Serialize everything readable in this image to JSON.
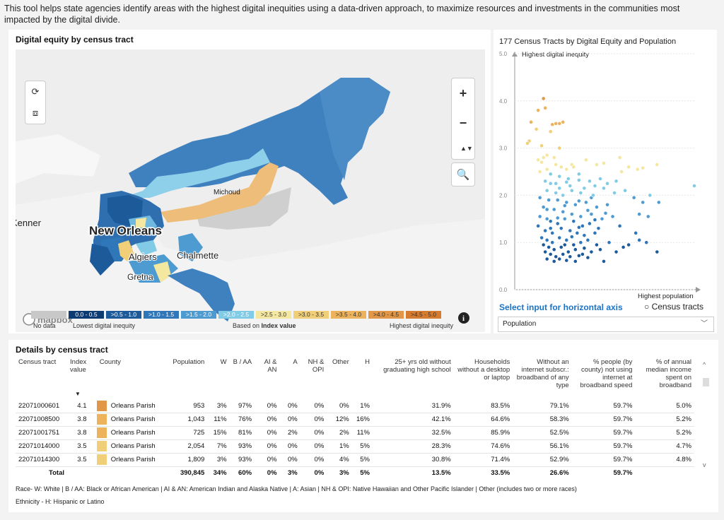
{
  "intro_text": "This tool helps state agencies identify areas with the highest digital inequities using a data-driven approach, to maximize resources and investments in the communities most impacted by the digital divide.",
  "map": {
    "title": "Digital equity by census tract",
    "places": {
      "city": "New Orleans",
      "p1": "Michoud",
      "p2": "Algiers",
      "p3": "Chalmette",
      "p4": "Gretna",
      "p5": "Kenner"
    },
    "attribution": "mapbox",
    "info_icon": "i",
    "controls": {
      "zoom_in": "+",
      "zoom_out": "−",
      "compass": "▲▼",
      "search": "🔍"
    },
    "legend": {
      "bins": [
        {
          "label": "0.0 - 0.5",
          "color": "#0d3c73"
        },
        {
          "label": ">0.5 - 1.0",
          "color": "#1c5a9a"
        },
        {
          "label": ">1.0 - 1.5",
          "color": "#2f77b8"
        },
        {
          "label": ">1.5 - 2.0",
          "color": "#4e9bd2"
        },
        {
          "label": ">2.0 - 2.5",
          "color": "#82cbe6"
        },
        {
          "label": ">2.5 - 3.0",
          "color": "#f4e7a0"
        },
        {
          "label": ">3.0 - 3.5",
          "color": "#f1cf78"
        },
        {
          "label": ">3.5 - 4.0",
          "color": "#ecb25c"
        },
        {
          "label": ">4.0 - 4.5",
          "color": "#e29748"
        },
        {
          "label": ">4.5 - 5.0",
          "color": "#d67c30"
        }
      ],
      "no_data": "No data",
      "low_label": "Lowest digital inequity",
      "based_on": "Based on ",
      "based_on_bold": "Index value",
      "high_label": "Highest  digital inequity"
    }
  },
  "scatter": {
    "title": "177 Census Tracts by Digital Equity and Population",
    "y_axis_label": "Highest digital inequity",
    "x_axis_label": "Highest population",
    "axis_select_label": "Select input for horizontal axis",
    "legend_label": "Census tracts",
    "dropdown_value": "Population",
    "chart_data": {
      "type": "scatter",
      "title": "177 Census Tracts by Digital Equity and Population",
      "ylabel": "Highest digital inequity",
      "xlabel": "Highest population",
      "y_ticks": [
        "5.0",
        "4.0",
        "3.0",
        "2.0",
        "1.0",
        "0.0"
      ],
      "ylim": [
        0,
        5
      ],
      "xlim": [
        0,
        1
      ],
      "points": [
        [
          0.15,
          4.05
        ],
        [
          0.16,
          3.85
        ],
        [
          0.12,
          3.8
        ],
        [
          0.08,
          3.55
        ],
        [
          0.2,
          3.5
        ],
        [
          0.22,
          3.52
        ],
        [
          0.24,
          3.52
        ],
        [
          0.26,
          3.55
        ],
        [
          0.11,
          3.4
        ],
        [
          0.19,
          3.35
        ],
        [
          0.07,
          3.15
        ],
        [
          0.06,
          3.1
        ],
        [
          0.14,
          3.05
        ],
        [
          0.24,
          3.0
        ],
        [
          0.17,
          2.85
        ],
        [
          0.15,
          2.8
        ],
        [
          0.12,
          2.75
        ],
        [
          0.14,
          2.7
        ],
        [
          0.21,
          2.8
        ],
        [
          0.22,
          2.65
        ],
        [
          0.25,
          2.6
        ],
        [
          0.31,
          2.65
        ],
        [
          0.28,
          2.55
        ],
        [
          0.32,
          2.6
        ],
        [
          0.39,
          2.75
        ],
        [
          0.45,
          2.65
        ],
        [
          0.49,
          2.68
        ],
        [
          0.58,
          2.8
        ],
        [
          0.63,
          2.6
        ],
        [
          0.71,
          2.58
        ],
        [
          0.79,
          2.65
        ],
        [
          0.13,
          2.5
        ],
        [
          0.17,
          2.55
        ],
        [
          0.19,
          2.45
        ],
        [
          0.24,
          2.4
        ],
        [
          0.29,
          2.35
        ],
        [
          0.35,
          2.45
        ],
        [
          0.41,
          2.3
        ],
        [
          0.47,
          2.35
        ],
        [
          0.59,
          2.5
        ],
        [
          0.68,
          2.55
        ],
        [
          0.16,
          2.3
        ],
        [
          0.22,
          2.25
        ],
        [
          0.3,
          2.2
        ],
        [
          0.38,
          2.15
        ],
        [
          0.51,
          2.25
        ],
        [
          0.56,
          2.3
        ],
        [
          1.0,
          2.2
        ],
        [
          0.17,
          2.1
        ],
        [
          0.22,
          2.05
        ],
        [
          0.26,
          2.0
        ],
        [
          0.31,
          2.1
        ],
        [
          0.36,
          2.05
        ],
        [
          0.42,
          1.95
        ],
        [
          0.43,
          2.0
        ],
        [
          0.49,
          2.15
        ],
        [
          0.55,
          2.05
        ],
        [
          0.61,
          2.1
        ],
        [
          0.66,
          1.95
        ],
        [
          0.71,
          1.85
        ],
        [
          0.8,
          1.85
        ],
        [
          0.75,
          2.0
        ],
        [
          0.13,
          1.95
        ],
        [
          0.18,
          1.9
        ],
        [
          0.23,
          1.9
        ],
        [
          0.28,
          1.85
        ],
        [
          0.33,
          1.8
        ],
        [
          0.39,
          1.85
        ],
        [
          0.45,
          1.75
        ],
        [
          0.51,
          1.8
        ],
        [
          0.15,
          1.75
        ],
        [
          0.21,
          1.7
        ],
        [
          0.26,
          1.65
        ],
        [
          0.31,
          1.6
        ],
        [
          0.36,
          1.55
        ],
        [
          0.42,
          1.6
        ],
        [
          0.48,
          1.5
        ],
        [
          0.54,
          1.55
        ],
        [
          0.69,
          1.6
        ],
        [
          0.74,
          1.55
        ],
        [
          0.13,
          1.55
        ],
        [
          0.17,
          1.5
        ],
        [
          0.19,
          1.45
        ],
        [
          0.23,
          1.4
        ],
        [
          0.27,
          1.5
        ],
        [
          0.32,
          1.45
        ],
        [
          0.37,
          1.35
        ],
        [
          0.41,
          1.4
        ],
        [
          0.46,
          1.3
        ],
        [
          0.58,
          1.35
        ],
        [
          0.67,
          1.2
        ],
        [
          0.12,
          1.35
        ],
        [
          0.16,
          1.25
        ],
        [
          0.2,
          1.2
        ],
        [
          0.25,
          1.3
        ],
        [
          0.3,
          1.25
        ],
        [
          0.34,
          1.2
        ],
        [
          0.38,
          1.15
        ],
        [
          0.44,
          1.2
        ],
        [
          0.14,
          1.1
        ],
        [
          0.17,
          1.05
        ],
        [
          0.2,
          1.0
        ],
        [
          0.24,
          1.1
        ],
        [
          0.28,
          1.05
        ],
        [
          0.32,
          0.95
        ],
        [
          0.36,
          1.0
        ],
        [
          0.4,
          1.05
        ],
        [
          0.45,
          0.95
        ],
        [
          0.52,
          1.0
        ],
        [
          0.6,
          0.9
        ],
        [
          0.63,
          0.95
        ],
        [
          0.69,
          1.05
        ],
        [
          0.73,
          1.0
        ],
        [
          0.79,
          0.8
        ],
        [
          0.15,
          0.95
        ],
        [
          0.18,
          0.9
        ],
        [
          0.21,
          0.85
        ],
        [
          0.25,
          0.9
        ],
        [
          0.29,
          0.8
        ],
        [
          0.33,
          0.85
        ],
        [
          0.37,
          0.75
        ],
        [
          0.42,
          0.8
        ],
        [
          0.47,
          0.85
        ],
        [
          0.56,
          0.8
        ],
        [
          0.16,
          0.8
        ],
        [
          0.19,
          0.75
        ],
        [
          0.22,
          0.7
        ],
        [
          0.26,
          0.75
        ],
        [
          0.3,
          0.7
        ],
        [
          0.35,
          0.72
        ],
        [
          0.4,
          0.68
        ],
        [
          0.49,
          0.6
        ],
        [
          0.24,
          0.65
        ],
        [
          0.28,
          0.62
        ],
        [
          0.33,
          0.6
        ],
        [
          0.17,
          0.65
        ],
        [
          0.21,
          0.6
        ],
        [
          0.38,
          0.88
        ],
        [
          0.27,
          0.95
        ],
        [
          0.31,
          1.12
        ],
        [
          0.35,
          1.32
        ],
        [
          0.44,
          1.48
        ],
        [
          0.19,
          1.3
        ],
        [
          0.23,
          1.52
        ],
        [
          0.17,
          1.7
        ],
        [
          0.27,
          1.78
        ],
        [
          0.35,
          1.88
        ],
        [
          0.4,
          1.68
        ],
        [
          0.5,
          1.62
        ],
        [
          0.24,
          2.15
        ],
        [
          0.28,
          2.28
        ],
        [
          0.35,
          2.32
        ],
        [
          0.44,
          2.2
        ],
        [
          0.19,
          2.25
        ]
      ]
    }
  },
  "table": {
    "title": "Details by census tract",
    "columns": [
      "Census tract",
      "Index value",
      "County",
      "Population",
      "W",
      "B / AA",
      "AI & AN",
      "A",
      "NH & OPI",
      "Other",
      "H",
      "25+ yrs old without graduating high school",
      "Households without a desktop or laptop",
      "Without an internet subscr.: broadband of any type",
      "% people (by county) not using internet at broadband speed",
      "% of annual median income spent on broadband"
    ],
    "rows": [
      [
        "22071000601",
        "4.1",
        "Orleans Parish",
        "953",
        "3%",
        "97%",
        "0%",
        "0%",
        "0%",
        "0%",
        "1%",
        "31.9%",
        "83.5%",
        "79.1%",
        "59.7%",
        "5.0%"
      ],
      [
        "22071008500",
        "3.8",
        "Orleans Parish",
        "1,043",
        "11%",
        "76%",
        "0%",
        "0%",
        "0%",
        "12%",
        "16%",
        "42.1%",
        "64.6%",
        "58.3%",
        "59.7%",
        "5.2%"
      ],
      [
        "22071001751",
        "3.8",
        "Orleans Parish",
        "725",
        "15%",
        "81%",
        "0%",
        "2%",
        "0%",
        "2%",
        "11%",
        "32.5%",
        "85.9%",
        "52.5%",
        "59.7%",
        "5.2%"
      ],
      [
        "22071014000",
        "3.5",
        "Orleans Parish",
        "2,054",
        "7%",
        "93%",
        "0%",
        "0%",
        "0%",
        "1%",
        "5%",
        "28.3%",
        "74.6%",
        "56.1%",
        "59.7%",
        "4.7%"
      ],
      [
        "22071014300",
        "3.5",
        "Orleans Parish",
        "1,809",
        "3%",
        "93%",
        "0%",
        "0%",
        "0%",
        "4%",
        "5%",
        "30.8%",
        "71.4%",
        "52.9%",
        "59.7%",
        "4.8%"
      ]
    ],
    "row_colors": [
      "#e29748",
      "#ecb25c",
      "#ecb25c",
      "#f1cf78",
      "#f1cf78"
    ],
    "total": [
      "Total",
      "",
      "",
      "390,845",
      "34%",
      "60%",
      "0%",
      "3%",
      "0%",
      "3%",
      "5%",
      "13.5%",
      "33.5%",
      "26.6%",
      "59.7%",
      ""
    ],
    "footnote1": "Race-  W: White | B / AA: Black or African American | AI & AN: American Indian and Alaska Native | A: Asian | NH & OPI: Native Hawaiian      and Other Pacific Islander | Other (includes two or more races)",
    "footnote2": "Ethnicity - H: Hispanic or Latino",
    "sort_icon": "▼",
    "scroll_up": "^",
    "scroll_down": "v"
  }
}
